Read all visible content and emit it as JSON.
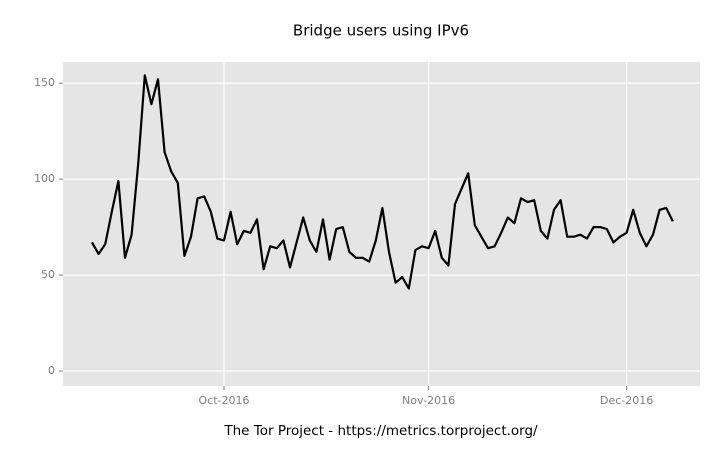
{
  "chart_data": {
    "type": "line",
    "title": "Bridge users using IPv6",
    "caption": "The Tor Project - https://metrics.torproject.org/",
    "categories": [
      null,
      null,
      null,
      null,
      null,
      null,
      null,
      null,
      null,
      null,
      null,
      null,
      null,
      null,
      null,
      null,
      null,
      null,
      null,
      null,
      "Oct-2016",
      null,
      null,
      null,
      null,
      null,
      null,
      null,
      null,
      null,
      null,
      null,
      null,
      null,
      null,
      null,
      null,
      null,
      null,
      null,
      null,
      null,
      null,
      null,
      null,
      null,
      null,
      null,
      null,
      null,
      null,
      "Nov-2016",
      null,
      null,
      null,
      null,
      null,
      null,
      null,
      null,
      null,
      null,
      null,
      null,
      null,
      null,
      null,
      null,
      null,
      null,
      null,
      null,
      null,
      null,
      null,
      null,
      null,
      null,
      null,
      null,
      null,
      "Dec-2016",
      null,
      null,
      null,
      null,
      null,
      null,
      null
    ],
    "series": [
      {
        "color": "#000000",
        "values": [
          67,
          61,
          66,
          83,
          99,
          59,
          71,
          108,
          154,
          139,
          152,
          114,
          104,
          98,
          60,
          70,
          90,
          91,
          83,
          69,
          68,
          83,
          66,
          73,
          72,
          79,
          53,
          65,
          64,
          68,
          54,
          67,
          80,
          68,
          62,
          79,
          58,
          74,
          75,
          62,
          59,
          59,
          57,
          68,
          85,
          62,
          46,
          49,
          43,
          63,
          65,
          64,
          73,
          59,
          55,
          87,
          95,
          103,
          76,
          70,
          64,
          65,
          72,
          80,
          77,
          90,
          88,
          89,
          73,
          69,
          84,
          89,
          70,
          70,
          71,
          69,
          75,
          75,
          74,
          67,
          70,
          72,
          84,
          72,
          65,
          71,
          84,
          85,
          78
        ]
      }
    ],
    "ylim": [
      -7.8,
      161
    ],
    "yticks": [
      0,
      50,
      100,
      150
    ],
    "grid": true
  }
}
